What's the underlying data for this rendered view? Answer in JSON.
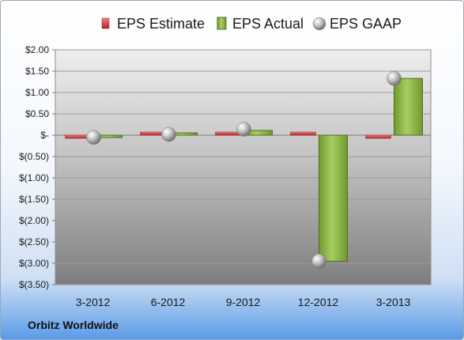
{
  "chart_data": {
    "type": "bar",
    "categories": [
      "3-2012",
      "6-2012",
      "9-2012",
      "12-2012",
      "3-2013"
    ],
    "series": [
      {
        "name": "EPS Estimate",
        "kind": "marker",
        "color": "#d43a3a",
        "values": [
          -0.05,
          0.02,
          0.04,
          0.04,
          -0.05
        ]
      },
      {
        "name": "EPS Actual",
        "kind": "bar",
        "color": "#8fb548",
        "values": [
          -0.03,
          0.01,
          0.11,
          -2.95,
          1.33
        ]
      },
      {
        "name": "EPS GAAP",
        "kind": "sphere",
        "color": "#b8b8b8",
        "values": [
          -0.05,
          0.02,
          0.14,
          -2.95,
          1.33
        ]
      }
    ],
    "ylim": [
      -3.5,
      2.0
    ],
    "yticks": [
      2.0,
      1.5,
      1.0,
      0.5,
      0.0,
      -0.5,
      -1.0,
      -1.5,
      -2.0,
      -2.5,
      -3.0,
      -3.5
    ],
    "ytick_labels": [
      "$2.00",
      "$1.50",
      "$1.00",
      "$0.50",
      "$-",
      "$(0.50)",
      "$(1.00)",
      "$(1.50)",
      "$(2.00)",
      "$(2.50)",
      "$(3.00)",
      "$(3.50)"
    ],
    "legend_position": "top",
    "grid": true
  },
  "footer": {
    "company": "Orbitz Worldwide"
  }
}
